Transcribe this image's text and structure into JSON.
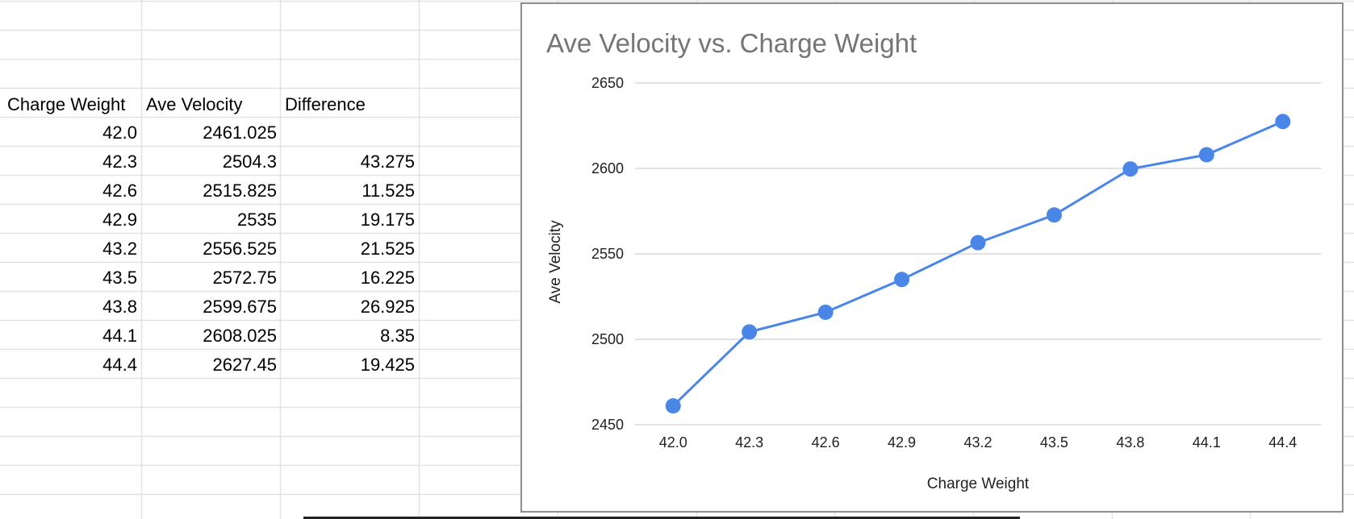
{
  "sheet": {
    "headers": [
      "Charge Weight",
      "Ave Velocity",
      "Difference"
    ],
    "rows": [
      [
        "42.0",
        "2461.025",
        ""
      ],
      [
        "42.3",
        "2504.3",
        "43.275"
      ],
      [
        "42.6",
        "2515.825",
        "11.525"
      ],
      [
        "42.9",
        "2535",
        "19.175"
      ],
      [
        "43.2",
        "2556.525",
        "21.525"
      ],
      [
        "43.5",
        "2572.75",
        "16.225"
      ],
      [
        "43.8",
        "2599.675",
        "26.925"
      ],
      [
        "44.1",
        "2608.025",
        "8.35"
      ],
      [
        "44.4",
        "2627.45",
        "19.425"
      ]
    ]
  },
  "chart_data": {
    "type": "line",
    "title": "Ave Velocity vs. Charge Weight",
    "xlabel": "Charge Weight",
    "ylabel": "Ave Velocity",
    "categories": [
      "42.0",
      "42.3",
      "42.6",
      "42.9",
      "43.2",
      "43.5",
      "43.8",
      "44.1",
      "44.4"
    ],
    "series": [
      {
        "values": [
          2461.025,
          2504.3,
          2515.825,
          2535,
          2556.525,
          2572.75,
          2599.675,
          2608.025,
          2627.45
        ]
      }
    ],
    "ylim": [
      2450,
      2650
    ],
    "yticks": [
      2450,
      2500,
      2550,
      2600,
      2650
    ],
    "grid": true,
    "legend": "none",
    "colors": {
      "line": "#4a86e8",
      "grid": "#d9d9d9",
      "title": "#757575"
    }
  }
}
